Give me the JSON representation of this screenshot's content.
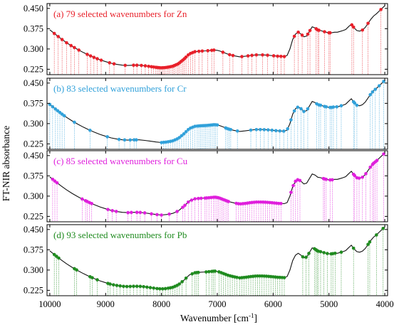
{
  "figure": {
    "ylabel": "FT-NIR absorbance",
    "xlabel": "Wavenumber [cm",
    "xlabel_sup": "-1",
    "xlabel_end": "]"
  },
  "chart_data": {
    "type": "line",
    "x_ticks": [
      10000,
      9000,
      8000,
      7000,
      6000,
      5000,
      4000
    ],
    "xlim": [
      10050,
      3950
    ],
    "y_ticks": [
      0.225,
      0.3,
      0.375,
      0.45
    ],
    "ylim": [
      0.205,
      0.468
    ],
    "spectrum": {
      "x": [
        10000,
        9900,
        9800,
        9700,
        9600,
        9500,
        9400,
        9300,
        9200,
        9100,
        9000,
        8900,
        8800,
        8700,
        8600,
        8500,
        8400,
        8300,
        8200,
        8100,
        8000,
        7900,
        7800,
        7700,
        7600,
        7500,
        7400,
        7300,
        7200,
        7100,
        7050,
        7000,
        6950,
        6900,
        6800,
        6700,
        6600,
        6500,
        6400,
        6300,
        6200,
        6100,
        6000,
        5900,
        5800,
        5750,
        5700,
        5650,
        5600,
        5550,
        5500,
        5450,
        5400,
        5350,
        5300,
        5250,
        5200,
        5150,
        5100,
        5050,
        5000,
        4950,
        4900,
        4850,
        4800,
        4750,
        4700,
        4650,
        4600,
        4550,
        4500,
        4450,
        4400,
        4350,
        4300,
        4250,
        4200,
        4150,
        4100,
        4050,
        4000
      ],
      "y": [
        0.371,
        0.354,
        0.338,
        0.323,
        0.31,
        0.298,
        0.287,
        0.277,
        0.268,
        0.26,
        0.253,
        0.247,
        0.243,
        0.24,
        0.239,
        0.24,
        0.24,
        0.238,
        0.235,
        0.232,
        0.23,
        0.232,
        0.236,
        0.245,
        0.262,
        0.282,
        0.29,
        0.292,
        0.293,
        0.295,
        0.296,
        0.295,
        0.292,
        0.288,
        0.28,
        0.275,
        0.271,
        0.273,
        0.276,
        0.278,
        0.278,
        0.277,
        0.275,
        0.273,
        0.272,
        0.276,
        0.3,
        0.335,
        0.355,
        0.362,
        0.355,
        0.345,
        0.348,
        0.365,
        0.382,
        0.378,
        0.37,
        0.368,
        0.365,
        0.362,
        0.36,
        0.36,
        0.362,
        0.362,
        0.365,
        0.368,
        0.372,
        0.382,
        0.392,
        0.378,
        0.368,
        0.366,
        0.37,
        0.38,
        0.395,
        0.41,
        0.422,
        0.43,
        0.44,
        0.45,
        0.46
      ]
    },
    "panels": [
      {
        "title": "(a) 79 selected wavenumbers for Zn",
        "color": "#e8202a",
        "selected": [
          9920,
          9850,
          9780,
          9700,
          9620,
          9560,
          9480,
          9330,
          9270,
          9210,
          9150,
          9080,
          8930,
          8850,
          8650,
          8500,
          8440,
          8360,
          8290,
          8230,
          8180,
          8140,
          8100,
          8070,
          8040,
          8010,
          7980,
          7950,
          7920,
          7890,
          7860,
          7830,
          7800,
          7770,
          7740,
          7710,
          7680,
          7650,
          7620,
          7590,
          7560,
          7520,
          7480,
          7440,
          7400,
          7330,
          7270,
          7170,
          7100,
          7060,
          6900,
          6780,
          6720,
          6560,
          6450,
          6380,
          6300,
          6190,
          6100,
          5990,
          5920,
          5860,
          5800,
          5620,
          5550,
          5480,
          5380,
          5340,
          5230,
          5200,
          5180,
          5080,
          5000,
          4980,
          4590,
          4560,
          4400,
          4300,
          4070
        ]
      },
      {
        "title": "(b) 83 selected wavenumbers for Cr",
        "color": "#31a1da",
        "selected": [
          10000,
          9950,
          9900,
          9860,
          9820,
          9780,
          9740,
          9560,
          9280,
          8970,
          8760,
          8660,
          8560,
          8490,
          8450,
          8000,
          7960,
          7920,
          7880,
          7840,
          7800,
          7760,
          7720,
          7680,
          7640,
          7600,
          7560,
          7520,
          7480,
          7440,
          7400,
          7360,
          7330,
          7300,
          7270,
          7240,
          7210,
          7180,
          7150,
          7120,
          7090,
          7060,
          7030,
          7000,
          6850,
          6820,
          6790,
          6760,
          6640,
          6400,
          6300,
          6230,
          6160,
          6090,
          6020,
          5950,
          5880,
          5810,
          5740,
          5680,
          5620,
          5560,
          5500,
          5450,
          5380,
          5220,
          5180,
          5150,
          5080,
          5050,
          4980,
          4950,
          4920,
          4860,
          4780,
          4560,
          4540,
          4500,
          4260,
          4220,
          4170,
          4100,
          4020
        ]
      },
      {
        "title": "(c) 85 selected wavenumbers for Cu",
        "color": "#df1fdc",
        "selected": [
          9950,
          9910,
          9870,
          9420,
          9360,
          9330,
          9290,
          9250,
          8960,
          8880,
          8810,
          8600,
          8540,
          8440,
          8380,
          8300,
          8180,
          8080,
          8000,
          7860,
          7720,
          7620,
          7580,
          7520,
          7460,
          7400,
          7340,
          7290,
          7220,
          7190,
          7150,
          7110,
          7070,
          7040,
          7010,
          6980,
          6950,
          6920,
          6890,
          6860,
          6830,
          6800,
          6660,
          6620,
          6580,
          6540,
          6500,
          6460,
          6420,
          6380,
          6340,
          6300,
          6260,
          6220,
          6180,
          6140,
          6100,
          6060,
          6020,
          5980,
          5940,
          5900,
          5860,
          5680,
          5640,
          5600,
          5560,
          5520,
          5100,
          5080,
          5050,
          4980,
          4940,
          4560,
          4540,
          4500,
          4460,
          4400,
          4340,
          4260,
          4220,
          4200,
          4170,
          4140,
          4020
        ]
      },
      {
        "title": "(d) 93 selected wavenumbers for Pb",
        "color": "#1f8b1f",
        "selected": [
          9920,
          9880,
          9840,
          9560,
          9520,
          9280,
          9240,
          9150,
          8960,
          8920,
          8860,
          8800,
          8740,
          8680,
          8620,
          8560,
          8500,
          8440,
          8380,
          8320,
          8260,
          8200,
          8140,
          8080,
          8030,
          7980,
          7930,
          7880,
          7840,
          7800,
          7760,
          7720,
          7680,
          7630,
          7560,
          7450,
          7400,
          7370,
          7340,
          7200,
          7150,
          7100,
          7070,
          7040,
          6970,
          6930,
          6890,
          6850,
          6810,
          6770,
          6730,
          6690,
          6650,
          6600,
          6560,
          6520,
          6480,
          6440,
          6400,
          6360,
          6320,
          6280,
          6240,
          6200,
          6160,
          6120,
          6080,
          6040,
          6000,
          5960,
          5920,
          5880,
          5840,
          5800,
          5470,
          5410,
          5360,
          5260,
          5230,
          5210,
          5190,
          5150,
          5090,
          5030,
          4960,
          4930,
          4890,
          4780,
          4560,
          4300,
          4270,
          4150,
          4030
        ]
      }
    ]
  }
}
